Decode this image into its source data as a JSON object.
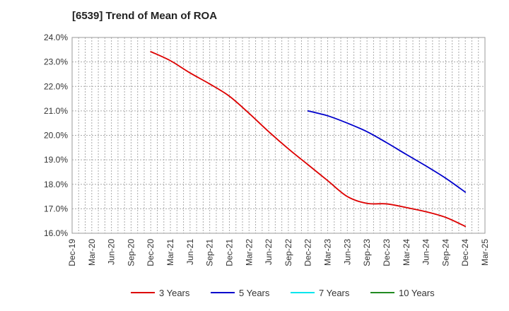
{
  "chart_data": {
    "type": "line",
    "title": "[6539]  Trend of Mean of ROA",
    "xlabel": "",
    "ylabel": "",
    "x_ticks": [
      "Dec-19",
      "Mar-20",
      "Jun-20",
      "Sep-20",
      "Dec-20",
      "Mar-21",
      "Jun-21",
      "Sep-21",
      "Dec-21",
      "Mar-22",
      "Jun-22",
      "Sep-22",
      "Dec-22",
      "Mar-23",
      "Jun-23",
      "Sep-23",
      "Dec-23",
      "Mar-24",
      "Jun-24",
      "Sep-24",
      "Dec-24",
      "Mar-25"
    ],
    "y_ticks": [
      "16.0%",
      "17.0%",
      "18.0%",
      "19.0%",
      "20.0%",
      "21.0%",
      "22.0%",
      "23.0%",
      "24.0%"
    ],
    "ylim": [
      16.0,
      24.0
    ],
    "grid": true,
    "legend_position": "bottom",
    "series": [
      {
        "name": "3 Years",
        "color": "#dd0000",
        "points": [
          [
            "Dec-20",
            23.42
          ],
          [
            "Mar-21",
            23.05
          ],
          [
            "Jun-21",
            22.55
          ],
          [
            "Sep-21",
            22.1
          ],
          [
            "Dec-21",
            21.6
          ],
          [
            "Mar-22",
            20.9
          ],
          [
            "Jun-22",
            20.15
          ],
          [
            "Sep-22",
            19.45
          ],
          [
            "Dec-22",
            18.8
          ],
          [
            "Mar-23",
            18.15
          ],
          [
            "Jun-23",
            17.5
          ],
          [
            "Sep-23",
            17.22
          ],
          [
            "Dec-23",
            17.2
          ],
          [
            "Mar-24",
            17.05
          ],
          [
            "Jun-24",
            16.88
          ],
          [
            "Sep-24",
            16.65
          ],
          [
            "Dec-24",
            16.28
          ]
        ]
      },
      {
        "name": "5 Years",
        "color": "#0000cc",
        "points": [
          [
            "Dec-22",
            21.0
          ],
          [
            "Mar-23",
            20.8
          ],
          [
            "Jun-23",
            20.5
          ],
          [
            "Sep-23",
            20.15
          ],
          [
            "Dec-23",
            19.7
          ],
          [
            "Mar-24",
            19.22
          ],
          [
            "Jun-24",
            18.75
          ],
          [
            "Sep-24",
            18.25
          ],
          [
            "Dec-24",
            17.68
          ]
        ]
      },
      {
        "name": "7 Years",
        "color": "#00e5ee",
        "points": []
      },
      {
        "name": "10 Years",
        "color": "#228b22",
        "points": []
      }
    ]
  }
}
